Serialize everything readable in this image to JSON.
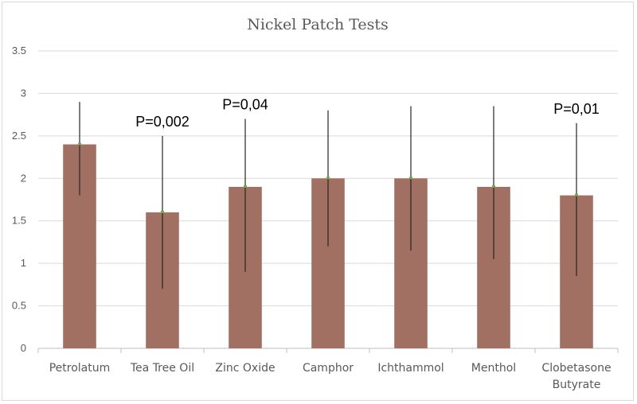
{
  "chart_data": {
    "type": "bar",
    "title": "Nickel Patch Tests",
    "categories": [
      "Petrolatum",
      "Tea Tree Oil",
      "Zinc Oxide",
      "Camphor",
      "Ichthammol",
      "Menthol",
      "Clobetasone Butyrate"
    ],
    "values": [
      2.4,
      1.6,
      1.9,
      2.0,
      2.0,
      1.9,
      1.8
    ],
    "error_upper": [
      2.9,
      2.5,
      2.7,
      2.8,
      2.85,
      2.85,
      2.65
    ],
    "error_lower": [
      1.8,
      0.7,
      0.9,
      1.2,
      1.15,
      1.05,
      0.85
    ],
    "annotations": [
      "",
      "P=0,002",
      "P=0,04",
      "",
      "",
      "",
      "P=0,01"
    ],
    "ylim": [
      0,
      3.5
    ],
    "yticks": [
      "0",
      "0.5",
      "1",
      "1.5",
      "2",
      "2.5",
      "3",
      "3.5"
    ],
    "grid": true,
    "legend": "none",
    "colors": {
      "bar": "#a27063",
      "marker": "#70ad47",
      "error": "#262626"
    }
  }
}
